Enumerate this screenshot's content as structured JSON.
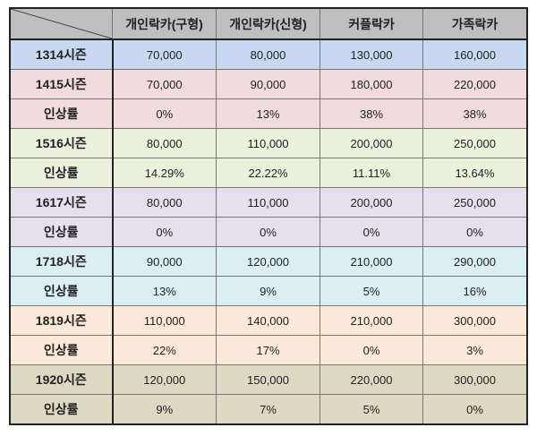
{
  "table": {
    "columns": [
      "개인락카(구형)",
      "개인락카(신형)",
      "커플락카",
      "가족락카"
    ],
    "rows": [
      {
        "label": "1314시즌",
        "values": [
          "70,000",
          "80,000",
          "130,000",
          "160,000"
        ],
        "bg": "#c6d9f0"
      },
      {
        "label": "1415시즌",
        "values": [
          "70,000",
          "90,000",
          "180,000",
          "220,000"
        ],
        "bg": "#f2dcdb"
      },
      {
        "label": "인상률",
        "values": [
          "0%",
          "13%",
          "38%",
          "38%"
        ],
        "bg": "#f2dcdb"
      },
      {
        "label": "1516시즌",
        "values": [
          "80,000",
          "110,000",
          "200,000",
          "250,000"
        ],
        "bg": "#ebf1dd"
      },
      {
        "label": "인상률",
        "values": [
          "14.29%",
          "22.22%",
          "11.11%",
          "13.64%"
        ],
        "bg": "#ebf1dd"
      },
      {
        "label": "1617시즌",
        "values": [
          "80,000",
          "110,000",
          "200,000",
          "250,000"
        ],
        "bg": "#e5e0ec"
      },
      {
        "label": "인상률",
        "values": [
          "0%",
          "0%",
          "0%",
          "0%"
        ],
        "bg": "#e5e0ec"
      },
      {
        "label": "1718시즌",
        "values": [
          "90,000",
          "120,000",
          "210,000",
          "290,000"
        ],
        "bg": "#dbeef3"
      },
      {
        "label": "인상률",
        "values": [
          "13%",
          "9%",
          "5%",
          "16%"
        ],
        "bg": "#dbeef3"
      },
      {
        "label": "1819시즌",
        "values": [
          "110,000",
          "140,000",
          "210,000",
          "300,000"
        ],
        "bg": "#fde9d9"
      },
      {
        "label": "인상률",
        "values": [
          "22%",
          "17%",
          "0%",
          "3%"
        ],
        "bg": "#fde9d9"
      },
      {
        "label": "1920시즌",
        "values": [
          "120,000",
          "150,000",
          "220,000",
          "300,000"
        ],
        "bg": "#ddd9c3"
      },
      {
        "label": "인상률",
        "values": [
          "9%",
          "7%",
          "5%",
          "0%"
        ],
        "bg": "#ddd9c3"
      }
    ]
  }
}
